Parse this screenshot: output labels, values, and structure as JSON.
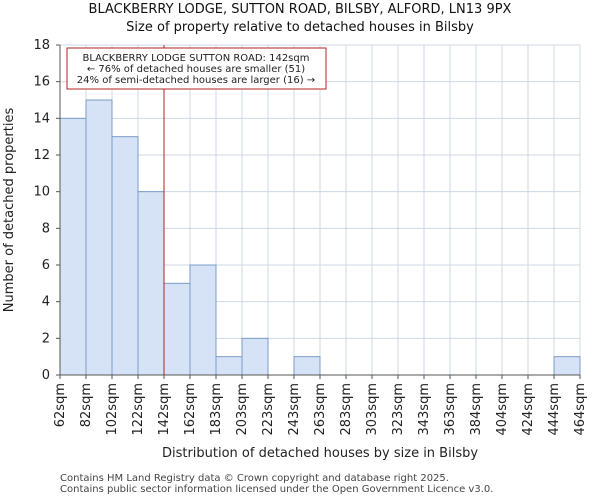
{
  "chart_data": {
    "type": "bar",
    "title": "BLACKBERRY LODGE, SUTTON ROAD, BILSBY, ALFORD, LN13 9PX",
    "subtitle": "Size of property relative to detached houses in Bilsby",
    "xlabel": "Distribution of detached houses by size in Bilsby",
    "ylabel": "Number of detached properties",
    "ylim": [
      0,
      18
    ],
    "yticks": [
      0,
      2,
      4,
      6,
      8,
      10,
      12,
      14,
      16,
      18
    ],
    "bin_edges": [
      "62sqm",
      "82sqm",
      "102sqm",
      "122sqm",
      "142sqm",
      "162sqm",
      "183sqm",
      "203sqm",
      "223sqm",
      "243sqm",
      "263sqm",
      "283sqm",
      "303sqm",
      "323sqm",
      "343sqm",
      "363sqm",
      "384sqm",
      "404sqm",
      "424sqm",
      "444sqm",
      "464sqm"
    ],
    "values": [
      14,
      15,
      13,
      10,
      5,
      6,
      1,
      2,
      0,
      1,
      0,
      0,
      0,
      0,
      0,
      0,
      0,
      0,
      0,
      1
    ],
    "marker_edge_index": 4,
    "bar_color": "#d6e2f5",
    "bar_edge_color": "#7a9cc9",
    "marker_color": "#b22222",
    "grid_color": "#cfd8e6",
    "annotation": {
      "line1": "BLACKBERRY LODGE SUTTON ROAD: 142sqm",
      "line2": "← 76% of detached houses are smaller (51)",
      "line3": "24% of semi-detached houses are larger (16) →"
    }
  },
  "footer": {
    "line1": "Contains HM Land Registry data © Crown copyright and database right 2025.",
    "line2": "Contains public sector information licensed under the Open Government Licence v3.0."
  }
}
